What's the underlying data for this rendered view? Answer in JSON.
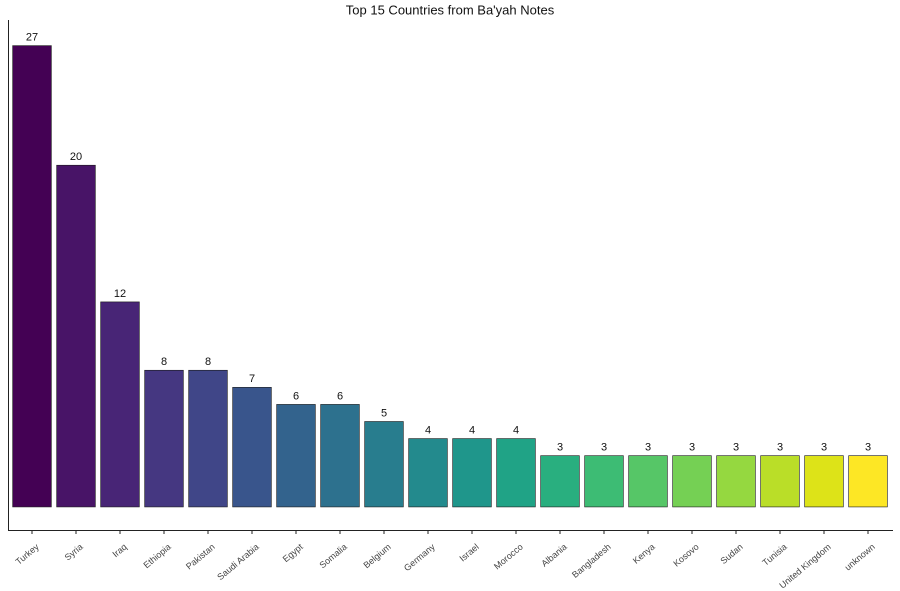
{
  "chart_data": {
    "type": "bar",
    "title": "Top 15 Countries from Ba'yah Notes",
    "categories": [
      "Turkey",
      "Syria",
      "Iraq",
      "Ethiopia",
      "Pakistan",
      "Saudi Arabia",
      "Egypt",
      "Somalia",
      "Belgium",
      "Germany",
      "Israel",
      "Morocco",
      "Albania",
      "Bangladesh",
      "Kenya",
      "Kosovo",
      "Sudan",
      "Tunisia",
      "United Kingdom",
      "unknown"
    ],
    "values": [
      27,
      20,
      12,
      8,
      8,
      7,
      6,
      6,
      5,
      4,
      4,
      4,
      3,
      3,
      3,
      3,
      3,
      3,
      3,
      3
    ],
    "colors": [
      "#440154",
      "#481467",
      "#482576",
      "#453781",
      "#404688",
      "#39558c",
      "#33638d",
      "#2d718e",
      "#287d8e",
      "#238a8d",
      "#1f968b",
      "#20a386",
      "#29af7f",
      "#3dbc74",
      "#56c667",
      "#75d054",
      "#95d840",
      "#bade28",
      "#dde318",
      "#fde725"
    ],
    "ylim": [
      -1.35,
      28.5
    ],
    "grid": false
  }
}
